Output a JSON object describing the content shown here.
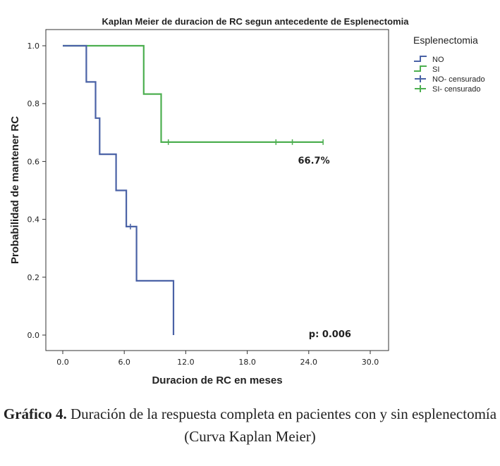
{
  "chart_data": {
    "type": "line",
    "title": "Kaplan Meier de duracion de RC segun antecedente de Esplenectomia",
    "xlabel": "Duracion de RC en meses",
    "ylabel": "Probabilidad de mantener RC",
    "xlim": [
      0,
      30
    ],
    "ylim": [
      0,
      1
    ],
    "xticks": [
      "0.0",
      "6.0",
      "12.0",
      "18.0",
      "24.0",
      "30.0"
    ],
    "yticks": [
      "0.0",
      "0.2",
      "0.4",
      "0.6",
      "0.8",
      "1.0"
    ],
    "grid": false,
    "legend": {
      "title": "Esplenectomia",
      "position": "right",
      "entries": [
        "NO",
        "SI",
        "NO- censurado",
        "SI- censurado"
      ]
    },
    "series": [
      {
        "name": "NO",
        "color": "#4a62a6",
        "step_x": [
          0,
          2.3,
          2.3,
          3.2,
          3.2,
          3.6,
          3.6,
          5.2,
          5.2,
          6.2,
          6.2,
          7.2,
          7.2,
          10.8,
          10.8
        ],
        "step_y": [
          1.0,
          1.0,
          0.875,
          0.875,
          0.75,
          0.75,
          0.625,
          0.625,
          0.5,
          0.5,
          0.375,
          0.375,
          0.1875,
          0.1875,
          0.0
        ],
        "censored": [
          {
            "x": 6.6,
            "y": 0.375
          }
        ]
      },
      {
        "name": "SI",
        "color": "#4daf50",
        "step_x": [
          0,
          7.9,
          7.9,
          9.6,
          9.6,
          25.4
        ],
        "step_y": [
          1.0,
          1.0,
          0.833,
          0.833,
          0.667,
          0.667
        ],
        "censored": [
          {
            "x": 10.3,
            "y": 0.667
          },
          {
            "x": 20.8,
            "y": 0.667
          },
          {
            "x": 22.4,
            "y": 0.667
          },
          {
            "x": 25.4,
            "y": 0.667
          }
        ]
      }
    ],
    "annotations": {
      "si_label": {
        "text": "66.7%",
        "x": 24.5,
        "y": 0.6
      },
      "p_value": {
        "text": "p: 0.006",
        "x": 24.0,
        "y": 0.0
      }
    }
  },
  "caption": {
    "bold": "Gráfico 4.",
    "text": " Duración de la respuesta completa en pacientes con y sin esplenectomía (Curva Kaplan Meier)"
  }
}
